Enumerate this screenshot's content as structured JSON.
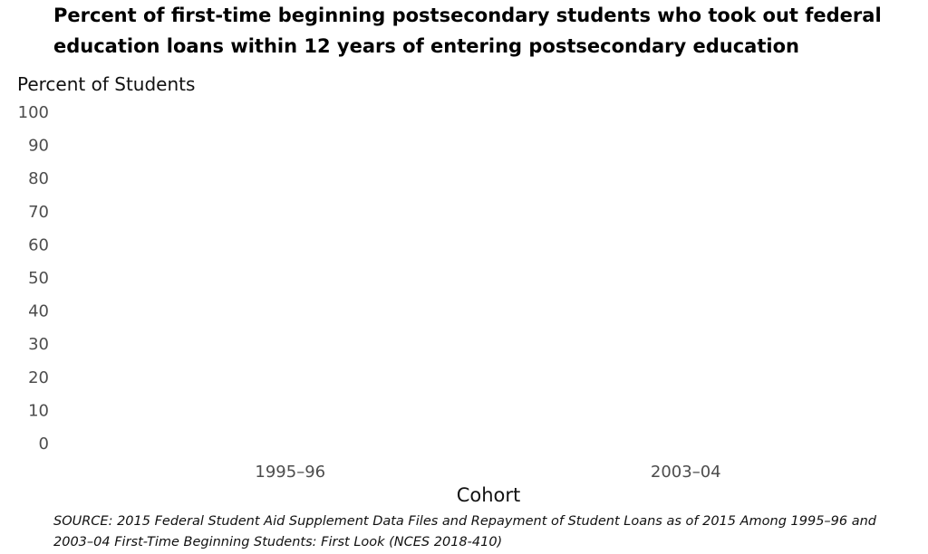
{
  "chart_data": {
    "type": "bar",
    "title": "Percent of first-time beginning postsecondary students who took out federal education loans within 12 years of entering postsecondary education",
    "ylabel": "Percent of Students",
    "xlabel": "Cohort",
    "categories": [
      "1995–96",
      "2003–04"
    ],
    "series": [],
    "ylim": [
      0,
      100
    ],
    "yticks": [
      100,
      90,
      80,
      70,
      60,
      50,
      40,
      30,
      20,
      10,
      0
    ],
    "grid": false,
    "source": "SOURCE: 2015 Federal Student Aid Supplement Data Files and Repayment of Student Loans as of 2015 Among 1995–96 and 2003–04 First-Time Beginning Students: First Look (NCES 2018-410)"
  }
}
